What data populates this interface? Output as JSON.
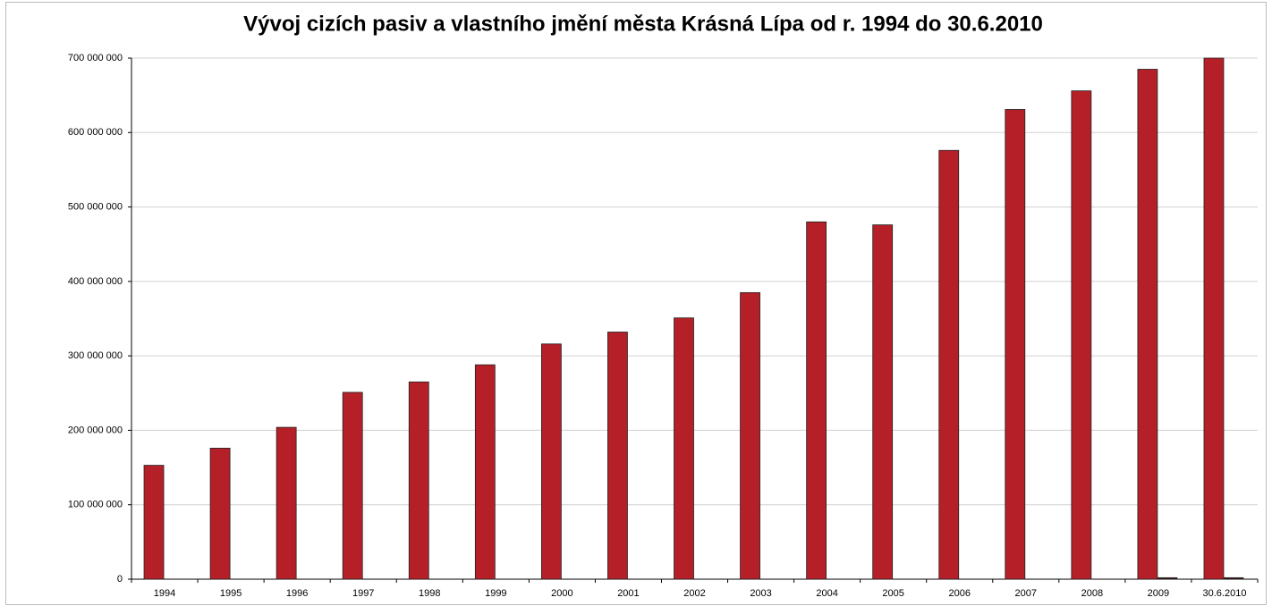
{
  "chart_data": {
    "type": "bar",
    "title": "Vývoj  cizích pasiv a vlastního jmění města Krásná Lípa od r. 1994 do 30.6.2010",
    "categories": [
      "1994",
      "1995",
      "1996",
      "1997",
      "1998",
      "1999",
      "2000",
      "2001",
      "2002",
      "2003",
      "2004",
      "2005",
      "2006",
      "2007",
      "2008",
      "2009",
      "30.6.2010"
    ],
    "series": [
      {
        "color": "#b41f28",
        "values": [
          153000000,
          176000000,
          204000000,
          251000000,
          265000000,
          288000000,
          316000000,
          332000000,
          351000000,
          385000000,
          480000000,
          476000000,
          576000000,
          631000000,
          656000000,
          685000000,
          700000000
        ]
      },
      {
        "color": "#3a1010",
        "values": [
          0,
          0,
          0,
          0,
          0,
          0,
          0,
          0,
          0,
          0,
          0,
          0,
          0,
          0,
          0,
          2000000,
          2000000
        ]
      }
    ],
    "ylim": [
      0,
      700000000
    ],
    "yticks": [
      0,
      {
        "value": 100000000,
        "label": "100 000 000"
      },
      {
        "value": 200000000,
        "label": "200 000 000"
      },
      {
        "value": 300000000,
        "label": "300 000 000"
      },
      {
        "value": 400000000,
        "label": "400 000 000"
      },
      {
        "value": 500000000,
        "label": "500 000 000"
      },
      {
        "value": 600000000,
        "label": "600 000 000"
      },
      {
        "value": 700000000,
        "label": "700 000 000"
      }
    ],
    "grid": true
  }
}
